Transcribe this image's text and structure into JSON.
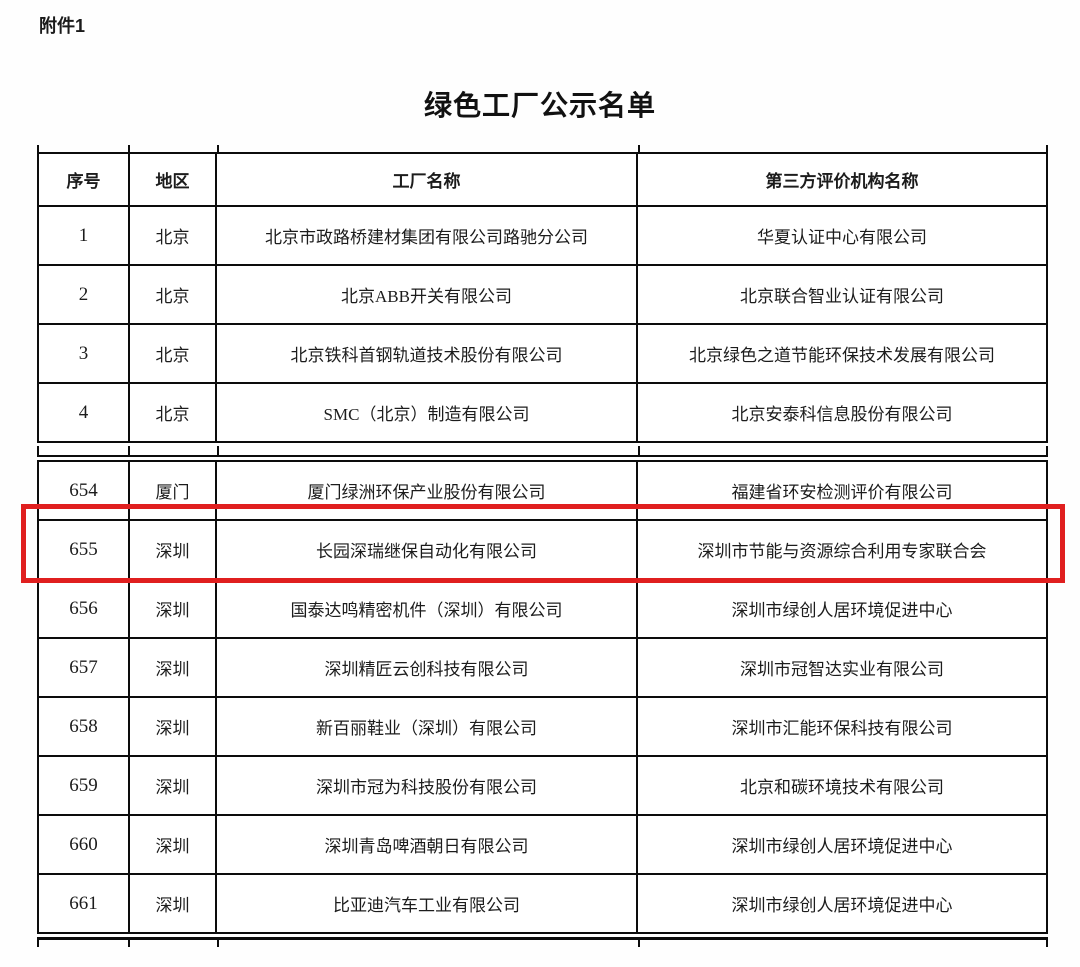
{
  "page": {
    "attachment_label": "附件1",
    "title": "绿色工厂公示名单"
  },
  "table": {
    "columns": [
      "序号",
      "地区",
      "工厂名称",
      "第三方评价机构名称"
    ],
    "highlight": {
      "row_no": "655",
      "color": "#e01f1f"
    },
    "sections": [
      {
        "rows": [
          {
            "no": "1",
            "region": "北京",
            "factory": "北京市政路桥建材集团有限公司路驰分公司",
            "agency": "华夏认证中心有限公司"
          },
          {
            "no": "2",
            "region": "北京",
            "factory": "北京ABB开关有限公司",
            "agency": "北京联合智业认证有限公司"
          },
          {
            "no": "3",
            "region": "北京",
            "factory": "北京铁科首钢轨道技术股份有限公司",
            "agency": "北京绿色之道节能环保技术发展有限公司"
          },
          {
            "no": "4",
            "region": "北京",
            "factory": "SMC（北京）制造有限公司",
            "agency": "北京安泰科信息股份有限公司"
          }
        ]
      },
      {
        "rows": [
          {
            "no": "654",
            "region": "厦门",
            "factory": "厦门绿洲环保产业股份有限公司",
            "agency": "福建省环安检测评价有限公司"
          },
          {
            "no": "655",
            "region": "深圳",
            "factory": "长园深瑞继保自动化有限公司",
            "agency": "深圳市节能与资源综合利用专家联合会"
          },
          {
            "no": "656",
            "region": "深圳",
            "factory": "国泰达鸣精密机件（深圳）有限公司",
            "agency": "深圳市绿创人居环境促进中心"
          },
          {
            "no": "657",
            "region": "深圳",
            "factory": "深圳精匠云创科技有限公司",
            "agency": "深圳市冠智达实业有限公司"
          },
          {
            "no": "658",
            "region": "深圳",
            "factory": "新百丽鞋业（深圳）有限公司",
            "agency": "深圳市汇能环保科技有限公司"
          },
          {
            "no": "659",
            "region": "深圳",
            "factory": "深圳市冠为科技股份有限公司",
            "agency": "北京和碳环境技术有限公司"
          },
          {
            "no": "660",
            "region": "深圳",
            "factory": "深圳青岛啤酒朝日有限公司",
            "agency": "深圳市绿创人居环境促进中心"
          },
          {
            "no": "661",
            "region": "深圳",
            "factory": "比亚迪汽车工业有限公司",
            "agency": "深圳市绿创人居环境促进中心"
          }
        ]
      }
    ]
  }
}
